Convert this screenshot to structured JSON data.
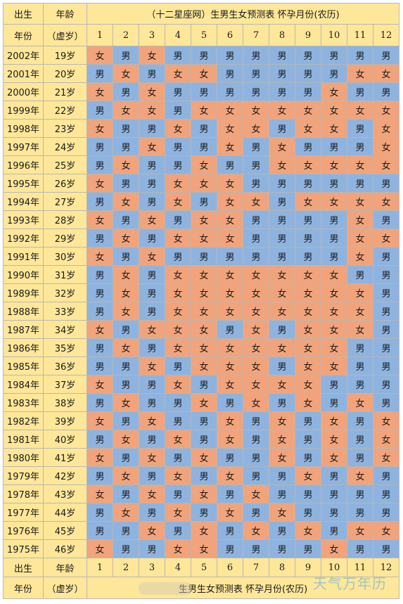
{
  "header": {
    "birth_label": "出生",
    "age_label": "年龄",
    "title": "（十二星座网）生男生女预测表  怀孕月份(农历)",
    "year_label": "年份",
    "xu_label": "（虚岁）"
  },
  "months": [
    "1",
    "2",
    "3",
    "4",
    "5",
    "6",
    "7",
    "8",
    "9",
    "10",
    "11",
    "12"
  ],
  "rows": [
    {
      "year": "2002年",
      "age": "19岁",
      "cells": [
        "女",
        "男",
        "女",
        "男",
        "男",
        "男",
        "男",
        "男",
        "男",
        "男",
        "男",
        "男"
      ]
    },
    {
      "year": "2001年",
      "age": "20岁",
      "cells": [
        "男",
        "女",
        "男",
        "女",
        "女",
        "男",
        "男",
        "男",
        "男",
        "男",
        "女",
        "女"
      ]
    },
    {
      "year": "2000年",
      "age": "21岁",
      "cells": [
        "女",
        "男",
        "女",
        "男",
        "男",
        "男",
        "男",
        "男",
        "男",
        "女",
        "男",
        "男"
      ]
    },
    {
      "year": "1999年",
      "age": "22岁",
      "cells": [
        "男",
        "女",
        "女",
        "男",
        "女",
        "女",
        "女",
        "女",
        "女",
        "女",
        "女",
        "女"
      ]
    },
    {
      "year": "1998年",
      "age": "23岁",
      "cells": [
        "女",
        "男",
        "男",
        "女",
        "男",
        "女",
        "女",
        "男",
        "女",
        "女",
        "男",
        "女"
      ]
    },
    {
      "year": "1997年",
      "age": "24岁",
      "cells": [
        "男",
        "男",
        "女",
        "男",
        "男",
        "女",
        "男",
        "女",
        "男",
        "男",
        "男",
        "女"
      ]
    },
    {
      "year": "1996年",
      "age": "25岁",
      "cells": [
        "男",
        "女",
        "男",
        "男",
        "女",
        "男",
        "男",
        "女",
        "女",
        "女",
        "女",
        "女"
      ]
    },
    {
      "year": "1995年",
      "age": "26岁",
      "cells": [
        "女",
        "男",
        "男",
        "女",
        "女",
        "女",
        "男",
        "男",
        "男",
        "男",
        "男",
        "男"
      ]
    },
    {
      "year": "1994年",
      "age": "27岁",
      "cells": [
        "男",
        "女",
        "男",
        "女",
        "男",
        "女",
        "女",
        "男",
        "女",
        "女",
        "女",
        "女"
      ]
    },
    {
      "year": "1993年",
      "age": "28岁",
      "cells": [
        "女",
        "男",
        "女",
        "男",
        "女",
        "女",
        "男",
        "男",
        "男",
        "男",
        "女",
        "男"
      ]
    },
    {
      "year": "1992年",
      "age": "29岁",
      "cells": [
        "男",
        "女",
        "男",
        "女",
        "女",
        "女",
        "男",
        "男",
        "男",
        "男",
        "女",
        "女"
      ]
    },
    {
      "year": "1991年",
      "age": "30岁",
      "cells": [
        "女",
        "男",
        "女",
        "男",
        "男",
        "男",
        "男",
        "男",
        "男",
        "男",
        "女",
        "男"
      ]
    },
    {
      "year": "1990年",
      "age": "31岁",
      "cells": [
        "男",
        "女",
        "男",
        "女",
        "女",
        "女",
        "女",
        "女",
        "女",
        "女",
        "男",
        "男"
      ]
    },
    {
      "year": "1989年",
      "age": "32岁",
      "cells": [
        "男",
        "女",
        "男",
        "女",
        "女",
        "女",
        "女",
        "女",
        "女",
        "女",
        "女",
        "男"
      ]
    },
    {
      "year": "1988年",
      "age": "33岁",
      "cells": [
        "男",
        "女",
        "男",
        "女",
        "女",
        "女",
        "女",
        "女",
        "女",
        "女",
        "女",
        "男"
      ]
    },
    {
      "year": "1987年",
      "age": "34岁",
      "cells": [
        "女",
        "男",
        "女",
        "女",
        "女",
        "男",
        "女",
        "男",
        "女",
        "女",
        "女",
        "男"
      ]
    },
    {
      "year": "1986年",
      "age": "35岁",
      "cells": [
        "男",
        "女",
        "男",
        "女",
        "女",
        "女",
        "女",
        "女",
        "女",
        "女",
        "男",
        "男"
      ]
    },
    {
      "year": "1985年",
      "age": "36岁",
      "cells": [
        "男",
        "男",
        "女",
        "男",
        "女",
        "女",
        "女",
        "男",
        "女",
        "女",
        "男",
        "男"
      ]
    },
    {
      "year": "1984年",
      "age": "37岁",
      "cells": [
        "女",
        "男",
        "男",
        "女",
        "男",
        "女",
        "女",
        "女",
        "女",
        "男",
        "男",
        "男"
      ]
    },
    {
      "year": "1983年",
      "age": "38岁",
      "cells": [
        "男",
        "女",
        "男",
        "男",
        "女",
        "男",
        "女",
        "男",
        "女",
        "男",
        "女",
        "男"
      ]
    },
    {
      "year": "1982年",
      "age": "39岁",
      "cells": [
        "女",
        "男",
        "女",
        "男",
        "男",
        "女",
        "男",
        "女",
        "男",
        "女",
        "男",
        "女"
      ]
    },
    {
      "year": "1981年",
      "age": "40岁",
      "cells": [
        "男",
        "女",
        "男",
        "女",
        "男",
        "女",
        "男",
        "女",
        "男",
        "女",
        "男",
        "女"
      ]
    },
    {
      "year": "1980年",
      "age": "41岁",
      "cells": [
        "女",
        "男",
        "女",
        "男",
        "女",
        "男",
        "男",
        "女",
        "男",
        "女",
        "男",
        "女"
      ]
    },
    {
      "year": "1979年",
      "age": "42岁",
      "cells": [
        "男",
        "女",
        "男",
        "女",
        "男",
        "女",
        "男",
        "男",
        "女",
        "男",
        "女",
        "男"
      ]
    },
    {
      "year": "1978年",
      "age": "43岁",
      "cells": [
        "女",
        "男",
        "女",
        "男",
        "女",
        "男",
        "女",
        "男",
        "男",
        "男",
        "男",
        "男"
      ]
    },
    {
      "year": "1977年",
      "age": "44岁",
      "cells": [
        "男",
        "女",
        "男",
        "女",
        "男",
        "女",
        "男",
        "女",
        "男",
        "男",
        "男",
        "男"
      ]
    },
    {
      "year": "1976年",
      "age": "45岁",
      "cells": [
        "男",
        "男",
        "女",
        "男",
        "女",
        "男",
        "女",
        "男",
        "女",
        "男",
        "女",
        "女"
      ]
    },
    {
      "year": "1975年",
      "age": "46岁",
      "cells": [
        "女",
        "男",
        "男",
        "女",
        "女",
        "男",
        "男",
        "男",
        "男",
        "女",
        "男",
        "男"
      ]
    }
  ],
  "footer": {
    "birth_label": "出生",
    "age_label": "年龄",
    "year_label": "年份",
    "xu_label": "（虚岁）",
    "subtitle": "生男生女预测表  怀孕月份(农历)"
  },
  "watermark": "天气万年历",
  "colors": {
    "male": "#8eb3df",
    "female": "#f1a47c",
    "header": "#ffe79a"
  }
}
